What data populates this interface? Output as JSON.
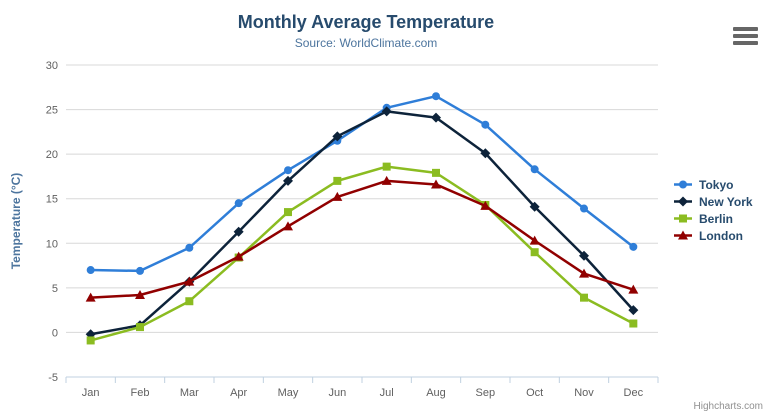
{
  "chart_data": {
    "type": "line",
    "title": "Monthly Average Temperature",
    "subtitle": "Source: WorldClimate.com",
    "categories": [
      "Jan",
      "Feb",
      "Mar",
      "Apr",
      "May",
      "Jun",
      "Jul",
      "Aug",
      "Sep",
      "Oct",
      "Nov",
      "Dec"
    ],
    "xlabel": "",
    "ylabel": "Temperature (°C)",
    "ylim": [
      -5,
      30
    ],
    "ytick_step": 5,
    "grid": true,
    "legend_position": "right",
    "series": [
      {
        "name": "Tokyo",
        "color": "#2f7ed8",
        "marker": "circle",
        "values": [
          7.0,
          6.9,
          9.5,
          14.5,
          18.2,
          21.5,
          25.2,
          26.5,
          23.3,
          18.3,
          13.9,
          9.6
        ]
      },
      {
        "name": "New York",
        "color": "#0d233a",
        "marker": "diamond",
        "values": [
          -0.2,
          0.8,
          5.7,
          11.3,
          17.0,
          22.0,
          24.8,
          24.1,
          20.1,
          14.1,
          8.6,
          2.5
        ]
      },
      {
        "name": "Berlin",
        "color": "#8bbc21",
        "marker": "square",
        "values": [
          -0.9,
          0.6,
          3.5,
          8.4,
          13.5,
          17.0,
          18.6,
          17.9,
          14.3,
          9.0,
          3.9,
          1.0
        ]
      },
      {
        "name": "London",
        "color": "#910000",
        "marker": "triangle",
        "values": [
          3.9,
          4.2,
          5.7,
          8.5,
          11.9,
          15.2,
          17.0,
          16.6,
          14.2,
          10.3,
          6.6,
          4.8
        ]
      }
    ]
  },
  "credit": {
    "label": "Highcharts.com"
  },
  "colors": {
    "title": "#274b6d",
    "subtitle": "#4d759e",
    "axis_title": "#4d759e",
    "tick_label": "#606060",
    "grid_line": "#d8d8d8",
    "axis_line": "#c0d0e0",
    "legend_text": "#274b6d",
    "menu_icon": "#666666",
    "credit_text": "#909090"
  }
}
